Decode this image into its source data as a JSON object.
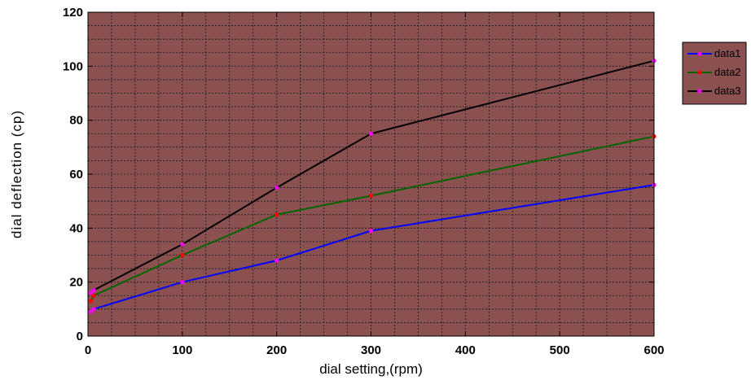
{
  "chart_data": {
    "type": "line",
    "title": "",
    "xlabel": "dial setting,(rpm)",
    "ylabel": "dial deflection (cp)",
    "xlim": [
      0,
      600
    ],
    "ylim": [
      0,
      120
    ],
    "xticks": [
      0,
      100,
      200,
      300,
      400,
      500,
      600
    ],
    "yticks": [
      0,
      20,
      40,
      60,
      80,
      100,
      120
    ],
    "grid": true,
    "legend_position": "outside-top-right",
    "plot_background": "#8b5050",
    "series": [
      {
        "name": "data1",
        "color": "#0000ff",
        "marker_color": "#ff00ff",
        "x": [
          3,
          6,
          100,
          200,
          300,
          600
        ],
        "y": [
          9,
          10,
          20,
          28,
          39,
          56
        ]
      },
      {
        "name": "data2",
        "color": "#006400",
        "marker_color": "#ff0000",
        "x": [
          3,
          6,
          100,
          200,
          300,
          600
        ],
        "y": [
          13,
          15,
          30,
          45,
          52,
          74
        ]
      },
      {
        "name": "data3",
        "color": "#000000",
        "marker_color": "#ff00ff",
        "x": [
          3,
          6,
          100,
          200,
          300,
          600
        ],
        "y": [
          16,
          17,
          34,
          55,
          75,
          102
        ]
      }
    ]
  }
}
